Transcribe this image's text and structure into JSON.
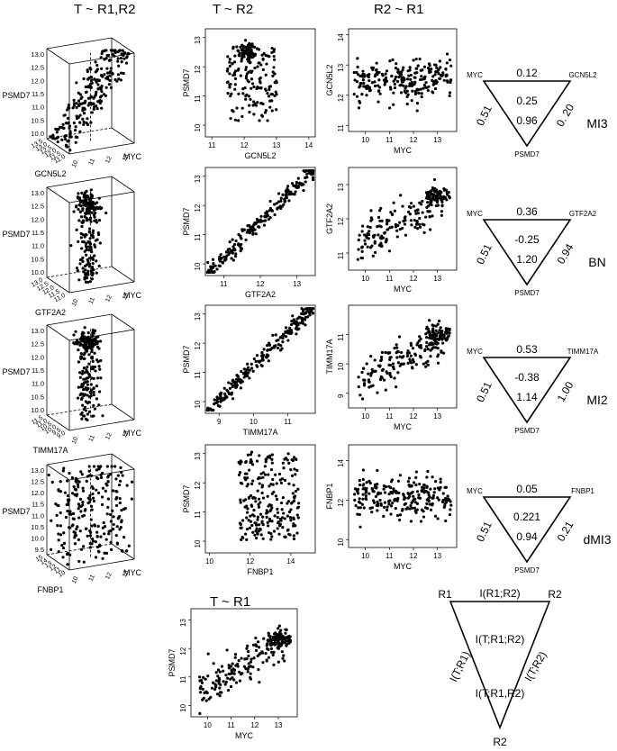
{
  "headers": {
    "col1": "T ~ R1,R2",
    "col2": "T ~ R2",
    "col3": "R2 ~ R1",
    "bottom": "T ~ R1"
  },
  "colors": {
    "ink": "#000000"
  },
  "chart_data": [
    {
      "id": "cube-gcn5l2",
      "type": "scatter3d",
      "zlabel": "PSMD7",
      "ylabel": "GCN5L2",
      "xlabel": "MYC",
      "zticks": [
        "10.0",
        "10.5",
        "11.0",
        "11.5",
        "12.0",
        "12.5",
        "13.0"
      ],
      "yticks": [
        "11.0",
        "11.5",
        "12.0",
        "12.5",
        "13.0",
        "13.5"
      ],
      "xticks": [
        "10",
        "11",
        "12",
        "13"
      ],
      "pattern": "rising"
    },
    {
      "id": "scatter-gcn5l2-psmd7",
      "type": "scatter",
      "xlabel": "GCN5L2",
      "ylabel": "PSMD7",
      "xlim": [
        10.8,
        14.2
      ],
      "ylim": [
        9.6,
        13.3
      ],
      "xticks": [
        11,
        12,
        13,
        14
      ],
      "yticks": [
        10,
        11,
        12,
        13
      ],
      "pattern": "gcn"
    },
    {
      "id": "scatter-myc-gcn5l2",
      "type": "scatter",
      "xlabel": "MYC",
      "ylabel": "GCN5L2",
      "xlim": [
        9.3,
        13.8
      ],
      "ylim": [
        10.8,
        14.2
      ],
      "xticks": [
        10,
        11,
        12,
        13
      ],
      "yticks": [
        11,
        12,
        13,
        14
      ],
      "pattern": "flat"
    },
    {
      "id": "tri-mi3",
      "type": "triangle",
      "tl": "MYC",
      "tr": "GCN5L2",
      "bottom": "PSMD7",
      "top_val": "0.12",
      "center": "0.25",
      "inner": "0.96",
      "left": "0.51",
      "right": "0. 20",
      "tag": "MI3"
    },
    {
      "id": "cube-gtf2a2",
      "type": "scatter3d",
      "zlabel": "PSMD7",
      "ylabel": "GTF2A2",
      "xlabel": "MYC",
      "zticks": [
        "10.0",
        "10.5",
        "11.0",
        "11.5",
        "12.0",
        "12.5",
        "13.0"
      ],
      "yticks": [
        "11.0",
        "11.5",
        "12.0",
        "12.5",
        "13.0"
      ],
      "xticks": [
        "10",
        "11",
        "12",
        "13"
      ],
      "pattern": "vertical"
    },
    {
      "id": "scatter-gtf2a2-psmd7",
      "type": "scatter",
      "xlabel": "GTF2A2",
      "ylabel": "PSMD7",
      "xlim": [
        10.5,
        13.5
      ],
      "ylim": [
        9.6,
        13.3
      ],
      "xticks": [
        11,
        12,
        13
      ],
      "yticks": [
        10,
        11,
        12,
        13
      ],
      "pattern": "diag"
    },
    {
      "id": "scatter-myc-gtf2a2",
      "type": "scatter",
      "xlabel": "MYC",
      "ylabel": "GTF2A2",
      "xlim": [
        9.3,
        13.8
      ],
      "ylim": [
        10.5,
        13.5
      ],
      "xticks": [
        10,
        11,
        12,
        13
      ],
      "yticks": [
        11,
        12,
        13
      ],
      "pattern": "rising"
    },
    {
      "id": "tri-bn",
      "type": "triangle",
      "tl": "MYC",
      "tr": "GTF2A2",
      "bottom": "PSMD7",
      "top_val": "0.36",
      "center": "-0.25",
      "inner": "1.20",
      "left": "0.51",
      "right": "0.94",
      "tag": "BN"
    },
    {
      "id": "cube-timm17a",
      "type": "scatter3d",
      "zlabel": "PSMD7",
      "ylabel": "TIMM17A",
      "xlabel": "MYC",
      "zticks": [
        "10.0",
        "10.5",
        "11.0",
        "11.5",
        "12.0",
        "12.5",
        "13.0"
      ],
      "yticks": [
        "9.0",
        "9.5",
        "10.0",
        "10.5",
        "11.0",
        "11.5"
      ],
      "xticks": [
        "10",
        "11",
        "12",
        "13"
      ],
      "pattern": "vertical"
    },
    {
      "id": "scatter-timm17a-psmd7",
      "type": "scatter",
      "xlabel": "TIMM17A",
      "ylabel": "PSMD7",
      "xlim": [
        8.6,
        11.8
      ],
      "ylim": [
        9.6,
        13.3
      ],
      "xticks": [
        9,
        10,
        11
      ],
      "yticks": [
        10,
        11,
        12,
        13
      ],
      "pattern": "diag"
    },
    {
      "id": "scatter-myc-timm17a",
      "type": "scatter",
      "xlabel": "MYC",
      "ylabel": "TIMM17A",
      "xlim": [
        9.3,
        13.8
      ],
      "ylim": [
        8.5,
        12.0
      ],
      "xticks": [
        10,
        11,
        12,
        13
      ],
      "yticks": [
        9,
        10,
        11
      ],
      "pattern": "rising"
    },
    {
      "id": "tri-mi2",
      "type": "triangle",
      "tl": "MYC",
      "tr": "TIMM17A",
      "bottom": "PSMD7",
      "top_val": "0.53",
      "center": "-0.38",
      "inner": "1.14",
      "left": "0.51",
      "right": "1.00",
      "tag": "MI2"
    },
    {
      "id": "cube-fnbp1",
      "type": "scatter3d",
      "zlabel": "PSMD7",
      "ylabel": "FNBP1",
      "xlabel": "MYC",
      "zticks": [
        "9.5",
        "10.0",
        "10.5",
        "11.0",
        "11.5",
        "12.0",
        "12.5",
        "13.0"
      ],
      "yticks": [
        "10",
        "11",
        "12",
        "13",
        "14",
        "15"
      ],
      "xticks": [
        "10",
        "11",
        "12",
        "13"
      ],
      "pattern": "scatter"
    },
    {
      "id": "scatter-fnbp1-psmd7",
      "type": "scatter",
      "xlabel": "FNBP1",
      "ylabel": "PSMD7",
      "xlim": [
        9.8,
        15.2
      ],
      "ylim": [
        9.6,
        13.3
      ],
      "xticks": [
        10,
        12,
        14
      ],
      "yticks": [
        10,
        11,
        12,
        13
      ],
      "pattern": "fnbp"
    },
    {
      "id": "scatter-myc-fnbp1",
      "type": "scatter",
      "xlabel": "MYC",
      "ylabel": "FNBP1",
      "xlim": [
        9.3,
        13.8
      ],
      "ylim": [
        9.6,
        14.8
      ],
      "xticks": [
        10,
        11,
        12,
        13
      ],
      "yticks": [
        10,
        12,
        14
      ],
      "pattern": "flat"
    },
    {
      "id": "tri-dmi3",
      "type": "triangle",
      "tl": "MYC",
      "tr": "FNBP1",
      "bottom": "PSMD7",
      "top_val": "0.05",
      "center": "0.221",
      "inner": "0.94",
      "left": "0.51",
      "right": "0.21",
      "tag": "dMI3"
    },
    {
      "id": "scatter-myc-psmd7",
      "type": "scatter",
      "xlabel": "MYC",
      "ylabel": "PSMD7",
      "xlim": [
        9.3,
        13.8
      ],
      "ylim": [
        9.6,
        13.4
      ],
      "xticks": [
        10,
        11,
        12,
        13
      ],
      "yticks": [
        10,
        11,
        12,
        13
      ],
      "pattern": "rising"
    },
    {
      "id": "tri-legend",
      "type": "triangle-legend",
      "tl": "R1",
      "tr": "R2",
      "bottom": "R2",
      "top_val": "I(R1;R2)",
      "center": "I(T;R1;R2)",
      "inner": "I(T;R1,R2)",
      "left": "I(T;R1)",
      "right": "I(T;R2)"
    }
  ]
}
